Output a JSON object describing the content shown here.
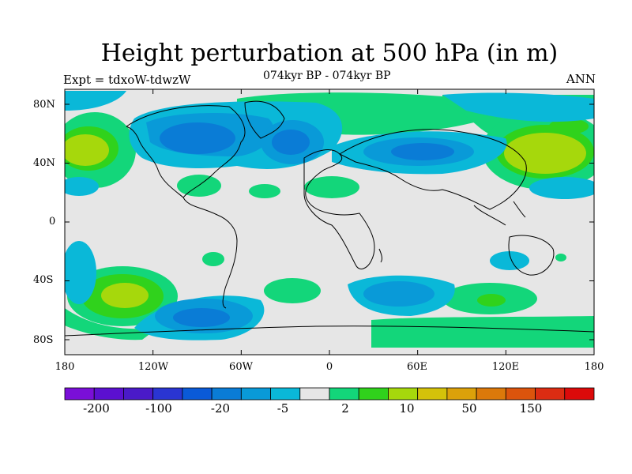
{
  "title": "Height perturbation at 500 hPa (in m)",
  "subtitle_left": "Expt = tdxoW-tdwzW",
  "subtitle_center": "074kyr BP - 074kyr BP",
  "subtitle_right": "ANN",
  "lat_labels": [
    "80N",
    "40N",
    "0",
    "40S",
    "80S"
  ],
  "lon_labels": [
    "180",
    "120W",
    "60W",
    "0",
    "60E",
    "120E",
    "180"
  ],
  "colorbar": {
    "colors": [
      "#7a0fd8",
      "#5b10d0",
      "#4a1ac8",
      "#2a35d2",
      "#0a5ad8",
      "#0a7cd6",
      "#099ad8",
      "#0ab8d8",
      "#e6e6e6",
      "#13d67a",
      "#30d21c",
      "#a6d80c",
      "#d4c20a",
      "#dca10a",
      "#dc790a",
      "#dc540c",
      "#dc2c12",
      "#dc0a0a"
    ],
    "labels": [
      "-200",
      "-100",
      "-20",
      "-5",
      "2",
      "10",
      "50",
      "150"
    ]
  }
}
